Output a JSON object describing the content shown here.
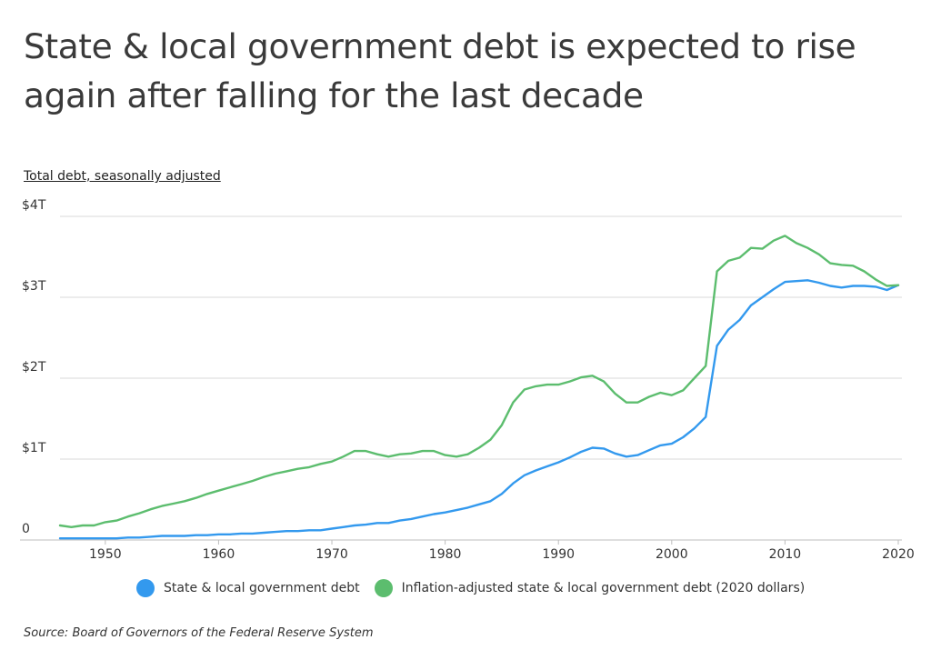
{
  "title": "State & local government debt is expected to rise again after falling for the last decade",
  "subtitle": "Total debt, seasonally adjusted",
  "source": "Source:  Board of Governors of the Federal Reserve System",
  "colors": {
    "series1": "#3399ee",
    "series2": "#5cbd6e",
    "grid": "#d9d9d9"
  },
  "chart_data": {
    "type": "line",
    "xlim": [
      1946,
      2020
    ],
    "ylim": [
      0,
      4
    ],
    "y_unit": "trillions of dollars",
    "x_ticks": [
      1950,
      1960,
      1970,
      1980,
      1990,
      2000,
      2010,
      2020
    ],
    "y_ticks": [
      {
        "value": 0,
        "label": "0"
      },
      {
        "value": 1,
        "label": "$1T"
      },
      {
        "value": 2,
        "label": "$2T"
      },
      {
        "value": 3,
        "label": "$3T"
      },
      {
        "value": 4,
        "label": "$4T"
      }
    ],
    "grid": true,
    "legend_position": "bottom",
    "x": [
      1946,
      1947,
      1948,
      1949,
      1950,
      1951,
      1952,
      1953,
      1954,
      1955,
      1956,
      1957,
      1958,
      1959,
      1960,
      1961,
      1962,
      1963,
      1964,
      1965,
      1966,
      1967,
      1968,
      1969,
      1970,
      1971,
      1972,
      1973,
      1974,
      1975,
      1976,
      1977,
      1978,
      1979,
      1980,
      1981,
      1982,
      1983,
      1984,
      1985,
      1986,
      1987,
      1988,
      1989,
      1990,
      1991,
      1992,
      1993,
      1994,
      1995,
      1996,
      1997,
      1998,
      1999,
      2000,
      2001,
      2002,
      2003,
      2004,
      2005,
      2006,
      2007,
      2008,
      2009,
      2010,
      2011,
      2012,
      2013,
      2014,
      2015,
      2016,
      2017,
      2018,
      2019,
      2020
    ],
    "series": [
      {
        "name": "State & local government debt",
        "values": [
          0.02,
          0.02,
          0.02,
          0.02,
          0.02,
          0.02,
          0.03,
          0.03,
          0.04,
          0.05,
          0.05,
          0.05,
          0.06,
          0.06,
          0.07,
          0.07,
          0.08,
          0.08,
          0.09,
          0.1,
          0.11,
          0.11,
          0.12,
          0.12,
          0.14,
          0.16,
          0.18,
          0.19,
          0.21,
          0.21,
          0.24,
          0.26,
          0.29,
          0.32,
          0.34,
          0.37,
          0.4,
          0.44,
          0.48,
          0.57,
          0.7,
          0.8,
          0.86,
          0.91,
          0.96,
          1.02,
          1.09,
          1.14,
          1.13,
          1.07,
          1.03,
          1.05,
          1.11,
          1.17,
          1.19,
          1.27,
          1.38,
          1.52,
          2.4,
          2.6,
          2.72,
          2.9,
          3.0,
          3.1,
          3.19,
          3.2,
          3.21,
          3.18,
          3.14,
          3.12,
          3.14,
          3.14,
          3.13,
          3.09,
          3.15
        ]
      },
      {
        "name": "Inflation-adjusted state & local government debt (2020 dollars)",
        "values": [
          0.18,
          0.16,
          0.18,
          0.18,
          0.22,
          0.24,
          0.29,
          0.33,
          0.38,
          0.42,
          0.45,
          0.48,
          0.52,
          0.57,
          0.61,
          0.65,
          0.69,
          0.73,
          0.78,
          0.82,
          0.85,
          0.88,
          0.9,
          0.94,
          0.97,
          1.03,
          1.1,
          1.1,
          1.06,
          1.03,
          1.06,
          1.07,
          1.1,
          1.1,
          1.05,
          1.03,
          1.06,
          1.14,
          1.24,
          1.42,
          1.7,
          1.86,
          1.9,
          1.92,
          1.92,
          1.96,
          2.01,
          2.03,
          1.96,
          1.81,
          1.7,
          1.7,
          1.77,
          1.82,
          1.79,
          1.85,
          2.0,
          2.15,
          3.32,
          3.45,
          3.49,
          3.61,
          3.6,
          3.7,
          3.76,
          3.67,
          3.61,
          3.53,
          3.42,
          3.4,
          3.39,
          3.32,
          3.22,
          3.14,
          3.15
        ]
      }
    ]
  }
}
